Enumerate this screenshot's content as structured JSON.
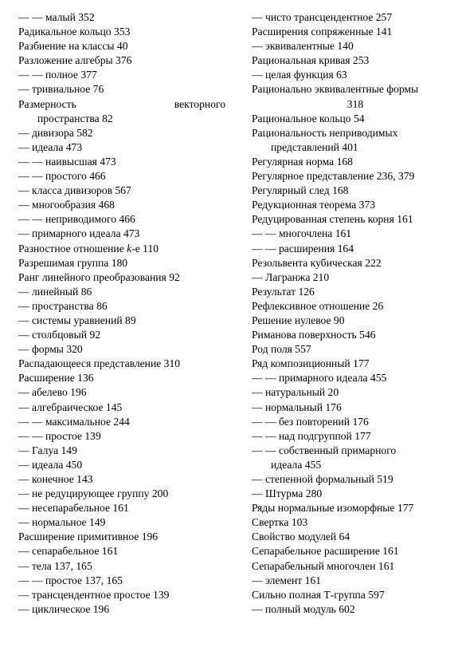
{
  "left_column": [
    "— — малый 352",
    "Радикальное кольцо 353",
    "Разбиение на классы 40",
    "Разложение алгебры 376",
    "— — полное 377",
    "— тривиальное 76",
    {
      "first": "Размерность векторного",
      "cont": "пространства 82",
      "justified": true
    },
    "— дивизора 582",
    "— идеала 473",
    "— — наивысшая 473",
    "— — простого 466",
    "— класса дивизоров 567",
    "— многообразия 468",
    "— — неприводимого 466",
    "— примарного идеала 473",
    "Разностное отношение k-е 110",
    "Разрешимая группа 180",
    "Ранг линейного преобразования 92",
    "— линейный 86",
    "— пространства 86",
    "— системы уравнений 89",
    "— столбцовый 92",
    "— формы 320",
    "Распадающееся представление 310",
    "Расширение 136",
    "— абелево 196",
    "— алгебраическое 145",
    "— — максимальное 244",
    "— — простое 139",
    "— Галуа 149",
    "— идеала 450",
    "— конечное 143",
    "— не редуцирующее группу 200",
    "— несепарабельное 161",
    "— нормальное 149",
    "Расширение примитивное 196",
    "— сепарабельное 161",
    "— тела 137, 165",
    "— — простое 137, 165",
    "— трансцендентное простое 139",
    "— циклическое 196"
  ],
  "right_column": [
    "— чисто трансцендентное 257",
    "Расширения сопряженные 141",
    "— эквивалентные 140",
    "Рациональная кривая 253",
    "— целая функция 63",
    {
      "first": "Рационально эквивалентные формы",
      "cont": "318",
      "center": true
    },
    "Рациональное кольцо 54",
    {
      "first": "Рациональность неприводимых",
      "cont": "представлений 401"
    },
    "Регулярная норма 168",
    "Регулярное представление 236, 379",
    "Регулярный след 168",
    "Редукционная теорема 373",
    "Редуцированная степень корня 161",
    "— — многочлена 161",
    "— — расширения 164",
    "Резольвента кубическая 222",
    "— Лагранжа 210",
    "Результат 126",
    "Рефлексивное отношение 26",
    "Решение нулевое 90",
    "Риманова поверхность 546",
    "Род поля 557",
    "Ряд композиционный 177",
    "— — примарного идеала 455",
    "— натуральный 20",
    "— нормальный 176",
    "— — без повторений 176",
    "— — над подгруппой 177",
    {
      "first": "— — собственный примарного",
      "cont": "идеала 455"
    },
    "— степенной формальный 519",
    "— Штурма 280",
    "Ряды нормальные изоморфные 177",
    "Свертка 103",
    "Свойство модулей 64",
    "Сепарабельное расширение 161",
    "Сепарабельный многочлен 161",
    "— элемент 161",
    "Сильно полная Т-группа 597",
    "— полный модуль 602"
  ]
}
